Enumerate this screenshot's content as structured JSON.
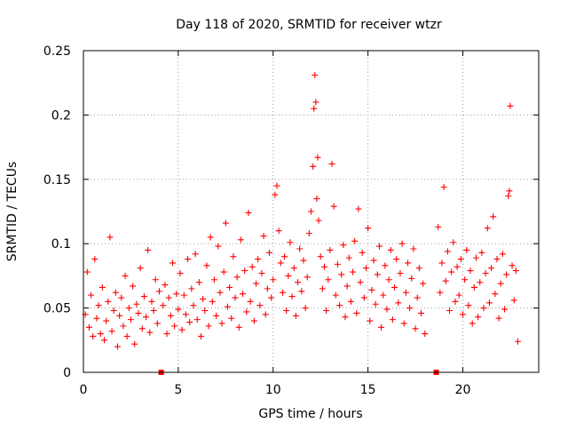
{
  "chart_data": {
    "type": "scatter",
    "title": "Day 118 of 2020, SRMTID for receiver wtzr",
    "xlabel": "GPS time / hours",
    "ylabel": "SRMTID / TECUs",
    "xlim": [
      0,
      24
    ],
    "ylim": [
      0,
      0.25
    ],
    "x_ticks": [
      0,
      5,
      10,
      15,
      20
    ],
    "y_ticks": [
      0,
      0.05,
      0.1,
      0.15,
      0.2,
      0.25
    ],
    "x_tick_labels": [
      "0",
      "5",
      "10",
      "15",
      "20"
    ],
    "y_tick_labels": [
      "0",
      "0.05",
      "0.1",
      "0.15",
      "0.2",
      "0.25"
    ],
    "grid": true,
    "marker": "plus",
    "color": "#ff0000",
    "gap_markers_x": [
      4.1,
      18.6
    ],
    "series": [
      {
        "name": "SRMTID",
        "points": [
          [
            0.1,
            0.045
          ],
          [
            0.2,
            0.078
          ],
          [
            0.3,
            0.035
          ],
          [
            0.4,
            0.06
          ],
          [
            0.5,
            0.028
          ],
          [
            0.6,
            0.088
          ],
          [
            0.7,
            0.042
          ],
          [
            0.8,
            0.052
          ],
          [
            0.9,
            0.03
          ],
          [
            1.0,
            0.066
          ],
          [
            1.1,
            0.025
          ],
          [
            1.2,
            0.04
          ],
          [
            1.3,
            0.055
          ],
          [
            1.4,
            0.105
          ],
          [
            1.5,
            0.032
          ],
          [
            1.6,
            0.048
          ],
          [
            1.7,
            0.062
          ],
          [
            1.8,
            0.02
          ],
          [
            1.9,
            0.044
          ],
          [
            2.0,
            0.058
          ],
          [
            2.1,
            0.036
          ],
          [
            2.2,
            0.075
          ],
          [
            2.3,
            0.028
          ],
          [
            2.4,
            0.05
          ],
          [
            2.5,
            0.041
          ],
          [
            2.6,
            0.067
          ],
          [
            2.7,
            0.022
          ],
          [
            2.8,
            0.053
          ],
          [
            2.9,
            0.046
          ],
          [
            3.0,
            0.081
          ],
          [
            3.1,
            0.034
          ],
          [
            3.2,
            0.059
          ],
          [
            3.3,
            0.043
          ],
          [
            3.4,
            0.095
          ],
          [
            3.5,
            0.031
          ],
          [
            3.6,
            0.055
          ],
          [
            3.7,
            0.048
          ],
          [
            3.8,
            0.072
          ],
          [
            3.9,
            0.038
          ],
          [
            4.0,
            0.063
          ],
          [
            4.2,
            0.052
          ],
          [
            4.3,
            0.068
          ],
          [
            4.4,
            0.03
          ],
          [
            4.5,
            0.058
          ],
          [
            4.6,
            0.044
          ],
          [
            4.7,
            0.085
          ],
          [
            4.8,
            0.036
          ],
          [
            4.9,
            0.061
          ],
          [
            5.0,
            0.049
          ],
          [
            5.1,
            0.077
          ],
          [
            5.2,
            0.033
          ],
          [
            5.3,
            0.06
          ],
          [
            5.4,
            0.045
          ],
          [
            5.5,
            0.088
          ],
          [
            5.6,
            0.039
          ],
          [
            5.7,
            0.065
          ],
          [
            5.8,
            0.052
          ],
          [
            5.9,
            0.092
          ],
          [
            6.0,
            0.041
          ],
          [
            6.1,
            0.07
          ],
          [
            6.2,
            0.028
          ],
          [
            6.3,
            0.057
          ],
          [
            6.4,
            0.048
          ],
          [
            6.5,
            0.083
          ],
          [
            6.6,
            0.036
          ],
          [
            6.7,
            0.105
          ],
          [
            6.8,
            0.055
          ],
          [
            6.9,
            0.072
          ],
          [
            7.0,
            0.044
          ],
          [
            7.1,
            0.098
          ],
          [
            7.2,
            0.062
          ],
          [
            7.3,
            0.038
          ],
          [
            7.4,
            0.078
          ],
          [
            7.5,
            0.116
          ],
          [
            7.6,
            0.051
          ],
          [
            7.7,
            0.066
          ],
          [
            7.8,
            0.042
          ],
          [
            7.9,
            0.09
          ],
          [
            8.0,
            0.058
          ],
          [
            8.1,
            0.074
          ],
          [
            8.2,
            0.035
          ],
          [
            8.3,
            0.103
          ],
          [
            8.4,
            0.061
          ],
          [
            8.5,
            0.079
          ],
          [
            8.6,
            0.047
          ],
          [
            8.7,
            0.124
          ],
          [
            8.8,
            0.055
          ],
          [
            8.9,
            0.082
          ],
          [
            9.0,
            0.04
          ],
          [
            9.1,
            0.069
          ],
          [
            9.2,
            0.088
          ],
          [
            9.3,
            0.052
          ],
          [
            9.4,
            0.077
          ],
          [
            9.5,
            0.106
          ],
          [
            9.6,
            0.045
          ],
          [
            9.7,
            0.065
          ],
          [
            9.8,
            0.093
          ],
          [
            9.9,
            0.058
          ],
          [
            10.0,
            0.072
          ],
          [
            10.1,
            0.138
          ],
          [
            10.2,
            0.145
          ],
          [
            10.3,
            0.11
          ],
          [
            10.4,
            0.085
          ],
          [
            10.5,
            0.062
          ],
          [
            10.6,
            0.09
          ],
          [
            10.7,
            0.048
          ],
          [
            10.8,
            0.075
          ],
          [
            10.9,
            0.101
          ],
          [
            11.0,
            0.059
          ],
          [
            11.1,
            0.081
          ],
          [
            11.2,
            0.044
          ],
          [
            11.3,
            0.07
          ],
          [
            11.4,
            0.096
          ],
          [
            11.5,
            0.063
          ],
          [
            11.6,
            0.087
          ],
          [
            11.7,
            0.05
          ],
          [
            11.8,
            0.074
          ],
          [
            11.9,
            0.108
          ],
          [
            12.0,
            0.125
          ],
          [
            12.1,
            0.16
          ],
          [
            12.15,
            0.205
          ],
          [
            12.2,
            0.231
          ],
          [
            12.25,
            0.21
          ],
          [
            12.3,
            0.135
          ],
          [
            12.35,
            0.167
          ],
          [
            12.4,
            0.118
          ],
          [
            12.5,
            0.09
          ],
          [
            12.6,
            0.065
          ],
          [
            12.7,
            0.082
          ],
          [
            12.8,
            0.048
          ],
          [
            12.9,
            0.072
          ],
          [
            13.0,
            0.095
          ],
          [
            13.1,
            0.162
          ],
          [
            13.2,
            0.129
          ],
          [
            13.3,
            0.06
          ],
          [
            13.4,
            0.084
          ],
          [
            13.5,
            0.052
          ],
          [
            13.6,
            0.076
          ],
          [
            13.7,
            0.099
          ],
          [
            13.8,
            0.043
          ],
          [
            13.9,
            0.067
          ],
          [
            14.0,
            0.089
          ],
          [
            14.1,
            0.055
          ],
          [
            14.2,
            0.078
          ],
          [
            14.3,
            0.102
          ],
          [
            14.4,
            0.046
          ],
          [
            14.5,
            0.127
          ],
          [
            14.6,
            0.07
          ],
          [
            14.7,
            0.093
          ],
          [
            14.8,
            0.058
          ],
          [
            14.9,
            0.081
          ],
          [
            15.0,
            0.112
          ],
          [
            15.1,
            0.04
          ],
          [
            15.2,
            0.064
          ],
          [
            15.3,
            0.087
          ],
          [
            15.4,
            0.053
          ],
          [
            15.5,
            0.076
          ],
          [
            15.6,
            0.098
          ],
          [
            15.7,
            0.035
          ],
          [
            15.8,
            0.06
          ],
          [
            15.9,
            0.083
          ],
          [
            16.0,
            0.049
          ],
          [
            16.1,
            0.072
          ],
          [
            16.2,
            0.095
          ],
          [
            16.3,
            0.041
          ],
          [
            16.4,
            0.066
          ],
          [
            16.5,
            0.088
          ],
          [
            16.6,
            0.054
          ],
          [
            16.7,
            0.077
          ],
          [
            16.8,
            0.1
          ],
          [
            16.9,
            0.038
          ],
          [
            17.0,
            0.062
          ],
          [
            17.1,
            0.085
          ],
          [
            17.2,
            0.05
          ],
          [
            17.3,
            0.073
          ],
          [
            17.4,
            0.096
          ],
          [
            17.5,
            0.034
          ],
          [
            17.6,
            0.058
          ],
          [
            17.7,
            0.081
          ],
          [
            17.8,
            0.046
          ],
          [
            17.9,
            0.069
          ],
          [
            18.0,
            0.03
          ],
          [
            18.7,
            0.113
          ],
          [
            18.8,
            0.062
          ],
          [
            18.9,
            0.085
          ],
          [
            19.0,
            0.144
          ],
          [
            19.1,
            0.071
          ],
          [
            19.2,
            0.094
          ],
          [
            19.3,
            0.048
          ],
          [
            19.4,
            0.078
          ],
          [
            19.5,
            0.101
          ],
          [
            19.6,
            0.055
          ],
          [
            19.7,
            0.082
          ],
          [
            19.8,
            0.06
          ],
          [
            19.9,
            0.088
          ],
          [
            20.0,
            0.045
          ],
          [
            20.1,
            0.072
          ],
          [
            20.2,
            0.095
          ],
          [
            20.3,
            0.052
          ],
          [
            20.4,
            0.079
          ],
          [
            20.5,
            0.038
          ],
          [
            20.6,
            0.066
          ],
          [
            20.7,
            0.089
          ],
          [
            20.8,
            0.043
          ],
          [
            20.9,
            0.07
          ],
          [
            21.0,
            0.093
          ],
          [
            21.1,
            0.05
          ],
          [
            21.2,
            0.077
          ],
          [
            21.3,
            0.112
          ],
          [
            21.4,
            0.054
          ],
          [
            21.5,
            0.081
          ],
          [
            21.6,
            0.121
          ],
          [
            21.7,
            0.061
          ],
          [
            21.8,
            0.088
          ],
          [
            21.9,
            0.042
          ],
          [
            22.0,
            0.069
          ],
          [
            22.1,
            0.092
          ],
          [
            22.2,
            0.049
          ],
          [
            22.3,
            0.076
          ],
          [
            22.4,
            0.137
          ],
          [
            22.45,
            0.141
          ],
          [
            22.5,
            0.207
          ],
          [
            22.6,
            0.083
          ],
          [
            22.7,
            0.056
          ],
          [
            22.8,
            0.079
          ],
          [
            22.9,
            0.024
          ]
        ]
      }
    ]
  }
}
